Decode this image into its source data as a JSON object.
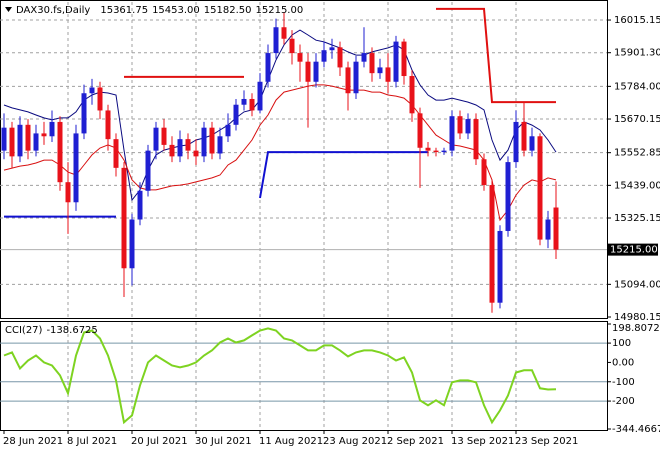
{
  "chart_data": [
    {
      "type": "candlestick",
      "title": "DAX30.fs,Daily",
      "header_values": [
        {
          "value": 15361.75,
          "label": "15361.75"
        },
        {
          "value": 15453,
          "label": "15453.00"
        },
        {
          "value": 15182.5,
          "label": "15182.50"
        },
        {
          "value": 15215,
          "label": "15215.00"
        }
      ],
      "categories": [
        "28 Jun 2021",
        null,
        null,
        null,
        null,
        null,
        null,
        null,
        "8 Jul 2021",
        null,
        null,
        null,
        null,
        null,
        null,
        null,
        "20 Jul 2021",
        null,
        null,
        null,
        null,
        null,
        null,
        null,
        "30 Jul 2021",
        null,
        null,
        null,
        null,
        null,
        null,
        null,
        "11 Aug 2021",
        null,
        null,
        null,
        null,
        null,
        null,
        null,
        "23 Aug 2021",
        null,
        null,
        null,
        null,
        null,
        null,
        null,
        "2 Sep 2021",
        null,
        null,
        null,
        null,
        null,
        null,
        null,
        "13 Sep 2021",
        null,
        null,
        null,
        null,
        null,
        null,
        null,
        "23 Sep 2021",
        null,
        null,
        null,
        null,
        null
      ],
      "open": [
        15560,
        15640,
        15540,
        15650,
        15560,
        15620,
        15610,
        15660,
        15450,
        15380,
        15620,
        15760,
        15780,
        15700,
        15600,
        15500,
        15150,
        15320,
        15420,
        15560,
        15640,
        15580,
        15540,
        15600,
        15560,
        15540,
        15640,
        15550,
        15610,
        15650,
        15720,
        15740,
        15700,
        15800,
        15900,
        15990,
        15950,
        15900,
        15870,
        15800,
        15870,
        15910,
        15920,
        15850,
        15760,
        15870,
        15900,
        15830,
        15850,
        15800,
        15940,
        15820,
        15690,
        15570,
        15560,
        15555,
        15560,
        15680,
        15620,
        15670,
        15530,
        15440,
        15030,
        15280,
        15520,
        15660,
        15560,
        15610,
        15250,
        15361.75
      ],
      "high": [
        15690,
        15660,
        15680,
        15670,
        15650,
        15660,
        15700,
        15680,
        15520,
        15650,
        15790,
        15810,
        15800,
        15720,
        15620,
        15520,
        15340,
        15450,
        15580,
        15660,
        15670,
        15610,
        15630,
        15620,
        15600,
        15660,
        15660,
        15640,
        15690,
        15740,
        15770,
        15760,
        15830,
        15930,
        16020,
        16040,
        15980,
        15930,
        15900,
        15900,
        15940,
        15950,
        15940,
        15870,
        15890,
        15990,
        15920,
        15880,
        15900,
        15960,
        15950,
        15840,
        15710,
        15590,
        15570,
        15570,
        15700,
        15700,
        15690,
        15690,
        15550,
        15460,
        15300,
        15540,
        15700,
        15730,
        15640,
        15620,
        15350,
        15453
      ],
      "low": [
        15530,
        15500,
        15520,
        15530,
        15540,
        15580,
        15590,
        15420,
        15270,
        15350,
        15600,
        15720,
        15670,
        15560,
        15470,
        15050,
        15090,
        15300,
        15400,
        15530,
        15560,
        15520,
        15520,
        15530,
        15510,
        15520,
        15530,
        15530,
        15590,
        15630,
        15700,
        15680,
        15690,
        15780,
        15880,
        15930,
        15860,
        15800,
        15640,
        15780,
        15850,
        15880,
        15820,
        15700,
        15740,
        15850,
        15800,
        15810,
        15760,
        15780,
        15790,
        15660,
        15430,
        15540,
        15540,
        15545,
        15540,
        15600,
        15600,
        15510,
        15420,
        14995,
        15010,
        15260,
        15500,
        15540,
        15540,
        15230,
        15220,
        15182.5
      ],
      "close": [
        15640,
        15540,
        15650,
        15560,
        15620,
        15610,
        15660,
        15450,
        15380,
        15620,
        15760,
        15780,
        15700,
        15600,
        15500,
        15150,
        15320,
        15420,
        15560,
        15640,
        15580,
        15540,
        15600,
        15560,
        15540,
        15640,
        15550,
        15610,
        15650,
        15720,
        15740,
        15700,
        15800,
        15900,
        15990,
        15950,
        15900,
        15870,
        15800,
        15870,
        15910,
        15920,
        15850,
        15760,
        15870,
        15900,
        15830,
        15850,
        15800,
        15940,
        15820,
        15690,
        15570,
        15560,
        15555,
        15560,
        15680,
        15620,
        15670,
        15530,
        15440,
        15030,
        15280,
        15520,
        15660,
        15560,
        15610,
        15250,
        15320,
        15215
      ],
      "up_color": "#1f1fd2",
      "down_color": "#e8121a",
      "series": [
        {
          "color": "#0a0a80",
          "width": 1,
          "values": [
            15719,
            15709,
            15702,
            15695,
            15684,
            15674,
            15667,
            15674,
            15674,
            15695,
            15736,
            15754,
            15764,
            15761,
            15754,
            15562,
            15388,
            15423,
            15492,
            15545,
            15562,
            15569,
            15576,
            15580,
            15597,
            15604,
            15614,
            15632,
            15649,
            15674,
            15695,
            15702,
            15736,
            15806,
            15876,
            15928,
            15963,
            15980,
            15963,
            15945,
            15939,
            15928,
            15918,
            15904,
            15893,
            15893,
            15904,
            15911,
            15918,
            15928,
            15911,
            15841,
            15789,
            15754,
            15736,
            15736,
            15743,
            15736,
            15729,
            15719,
            15702,
            15597,
            15527,
            15562,
            15632,
            15660,
            15649,
            15632,
            15597,
            15555
          ]
        },
        {
          "color": "#d81010",
          "width": 1,
          "values": [
            15492,
            15499,
            15506,
            15510,
            15517,
            15527,
            15527,
            15510,
            15485,
            15475,
            15510,
            15545,
            15569,
            15580,
            15569,
            15527,
            15458,
            15430,
            15423,
            15423,
            15430,
            15437,
            15440,
            15444,
            15451,
            15458,
            15465,
            15475,
            15510,
            15527,
            15562,
            15597,
            15649,
            15684,
            15736,
            15764,
            15771,
            15778,
            15785,
            15789,
            15789,
            15785,
            15778,
            15771,
            15771,
            15771,
            15764,
            15764,
            15754,
            15750,
            15743,
            15719,
            15684,
            15649,
            15614,
            15597,
            15580,
            15576,
            15569,
            15562,
            15527,
            15458,
            15318,
            15353,
            15405,
            15440,
            15458,
            15451,
            15465,
            15458
          ]
        },
        {
          "color": "#1010d0",
          "width": 2,
          "values": [
            15330,
            15330,
            15330,
            15330,
            15330,
            15330,
            15330,
            15330,
            15330,
            15330,
            15330,
            15330,
            15330,
            15330,
            15330,
            null,
            null,
            null,
            null,
            null,
            null,
            null,
            null,
            null,
            null,
            null,
            null,
            null,
            null,
            null,
            null,
            null,
            15395,
            15555,
            15555,
            15555,
            15555,
            15555,
            15555,
            15555,
            15555,
            15555,
            15555,
            15555,
            15555,
            15555,
            15555,
            15555,
            15555,
            15555,
            15555,
            15555,
            15555,
            15555,
            null,
            null,
            null,
            null,
            null,
            null,
            null,
            null,
            null,
            null,
            null,
            null,
            null,
            null,
            null,
            null
          ]
        },
        {
          "color": "#e01010",
          "width": 2,
          "values": [
            null,
            null,
            null,
            null,
            null,
            null,
            null,
            null,
            null,
            null,
            null,
            null,
            null,
            null,
            null,
            15817,
            15817,
            15817,
            15817,
            15817,
            15817,
            15817,
            15817,
            15817,
            15817,
            15817,
            15817,
            15817,
            15817,
            15817,
            15817,
            null,
            null,
            null,
            null,
            null,
            null,
            null,
            null,
            null,
            null,
            null,
            null,
            null,
            null,
            null,
            null,
            null,
            null,
            null,
            null,
            null,
            null,
            null,
            16054,
            16054,
            16054,
            16054,
            16054,
            16054,
            16054,
            15729,
            15729,
            15729,
            15729,
            15729,
            15729,
            15729,
            15729,
            15729
          ]
        }
      ],
      "ylim": [
        14980.15,
        16078
      ],
      "yticks": [
        16015.15,
        {
          "value": 15901.3,
          "label": "15901.30"
        },
        {
          "value": 15784,
          "label": "15784.00"
        },
        15670.15,
        15552.85,
        {
          "value": 15439,
          "label": "15439.00"
        },
        15325.15,
        {
          "value": 15094,
          "label": "15094.00"
        },
        14980.15
      ],
      "last_price": {
        "value": 15215,
        "label": "15215.00"
      },
      "grid": true
    },
    {
      "type": "line",
      "title": "CCI(27)",
      "series": [
        {
          "color": "#7ed321",
          "values": [
            36,
            52,
            -31,
            10,
            36,
            0,
            -16,
            -67,
            -160,
            36,
            155,
            165,
            124,
            36,
            -93,
            -310,
            -274,
            -119,
            0,
            36,
            10,
            -16,
            -26,
            -16,
            0,
            36,
            62,
            103,
            124,
            103,
            114,
            140,
            165,
            176,
            165,
            124,
            114,
            88,
            62,
            62,
            88,
            88,
            62,
            31,
            52,
            62,
            62,
            52,
            36,
            10,
            26,
            -52,
            -196,
            -222,
            -196,
            -222,
            -103,
            -93,
            -93,
            -103,
            -222,
            -310,
            -248,
            -171,
            -52,
            -41,
            -41,
            -134,
            -140,
            -138.6725
          ]
        }
      ],
      "ylim": [
        -344.4667,
        198.8072
      ],
      "yticks": [
        198.8072,
        100,
        {
          "value": 0,
          "label": "0.00"
        },
        -100,
        -200,
        -344.4667
      ],
      "levels": [
        100,
        -100,
        -200
      ]
    }
  ]
}
